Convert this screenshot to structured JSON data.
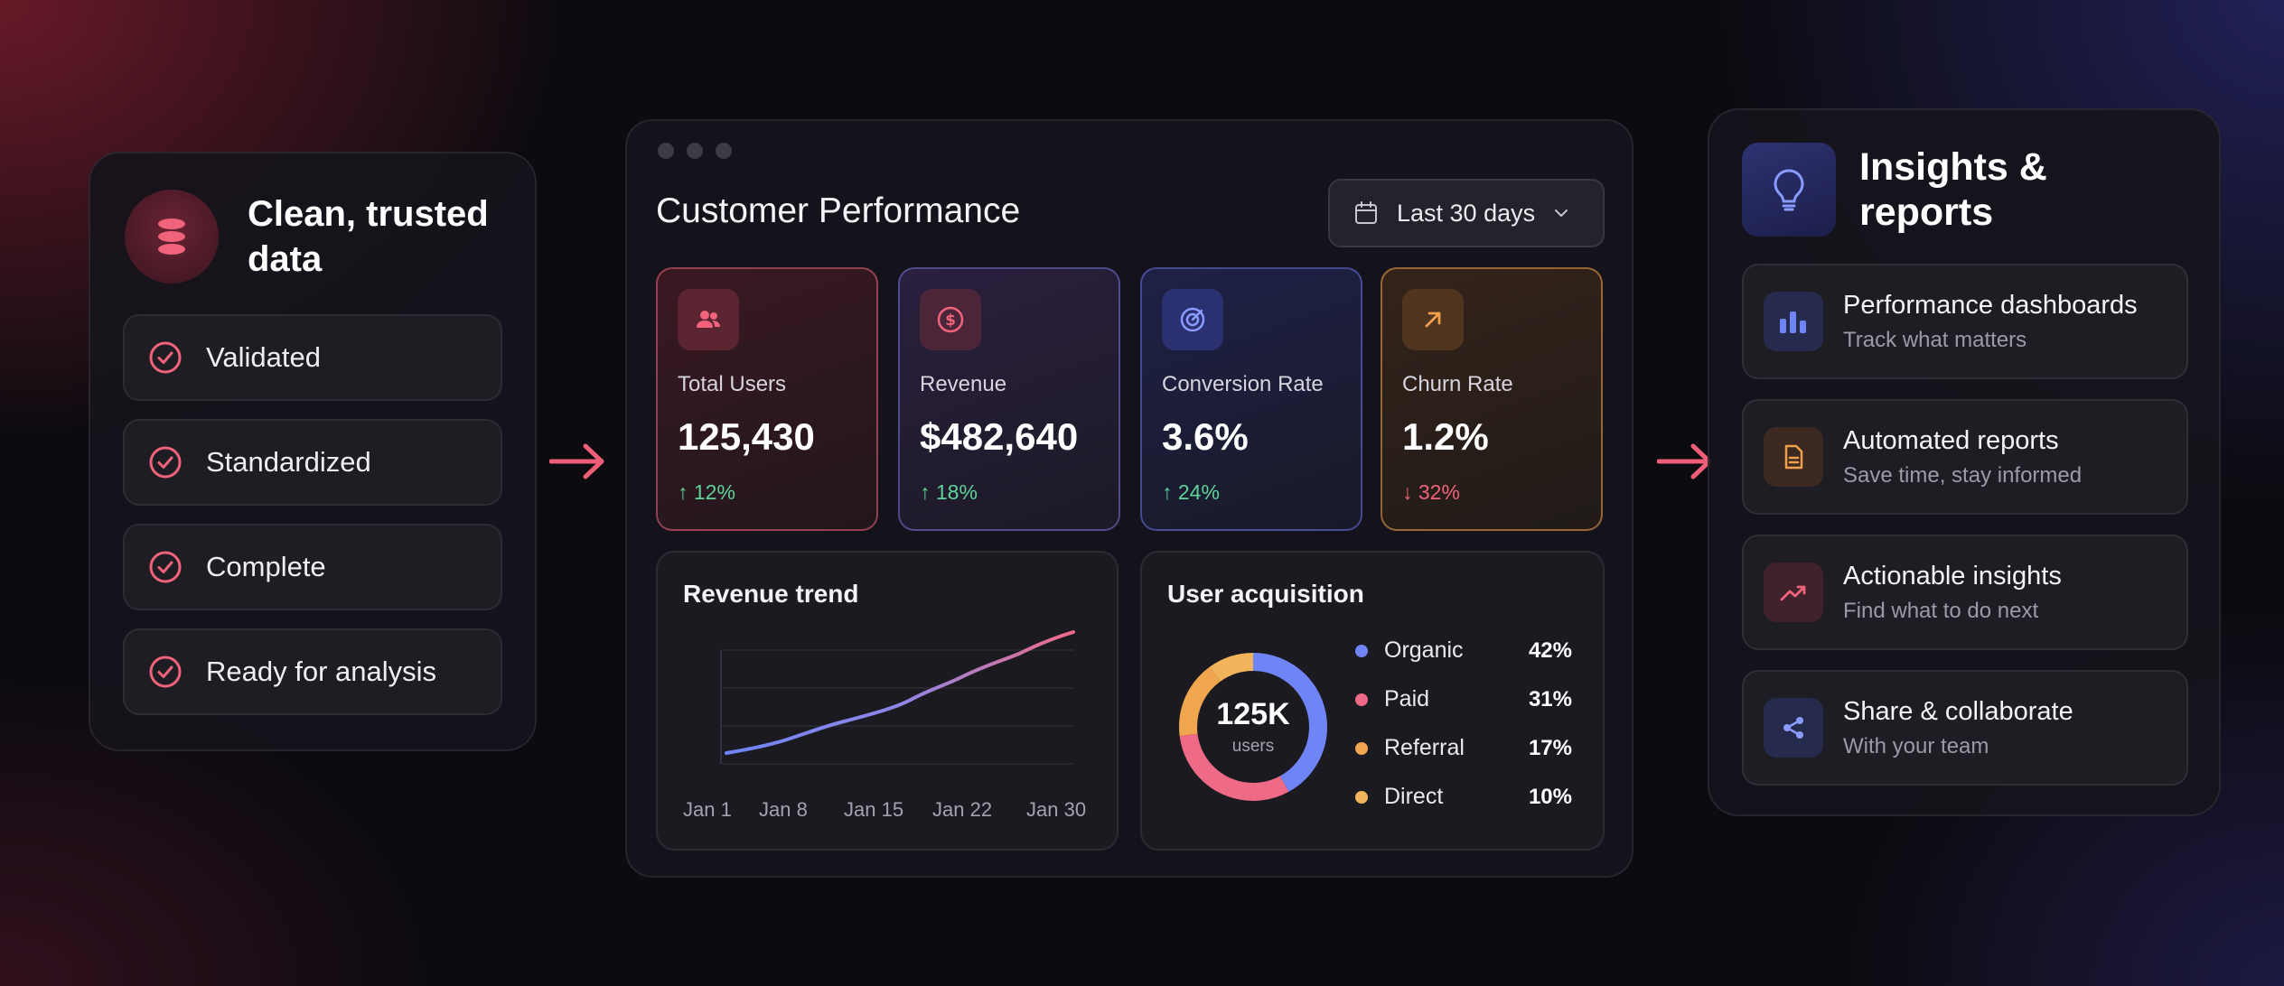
{
  "left_panel": {
    "title": "Clean, trusted data",
    "icon": "database-stack-icon",
    "items": [
      {
        "label": "Validated",
        "icon": "check-circle-icon"
      },
      {
        "label": "Standardized",
        "icon": "check-circle-icon"
      },
      {
        "label": "Complete",
        "icon": "check-circle-icon"
      },
      {
        "label": "Ready for analysis",
        "icon": "check-circle-icon"
      }
    ]
  },
  "dashboard": {
    "title": "Customer Performance",
    "date_filter": {
      "label": "Last 30 days",
      "icon": "calendar-icon"
    },
    "kpis": [
      {
        "label": "Total Users",
        "value": "125,430",
        "delta": "↑ 12%",
        "icon": "users-icon",
        "accent": "#e8637a"
      },
      {
        "label": "Revenue",
        "value": "$482,640",
        "delta": "↑ 18%",
        "icon": "dollar-icon",
        "accent": "#e8637a"
      },
      {
        "label": "Conversion Rate",
        "value": "3.6%",
        "delta": "↑ 24%",
        "icon": "target-icon",
        "accent": "#7b8cf7"
      },
      {
        "label": "Churn Rate",
        "value": "1.2%",
        "delta": "↓ 32%",
        "icon": "arrow-up-right-icon",
        "accent": "#f0a04b"
      }
    ],
    "revenue_trend": {
      "title": "Revenue trend",
      "x_labels": [
        "Jan 1",
        "Jan 8",
        "Jan 15",
        "Jan 22",
        "Jan 30"
      ]
    },
    "user_acquisition": {
      "title": "User acquisition",
      "center_value": "125K",
      "center_label": "users",
      "segments": [
        {
          "name": "Organic",
          "pct": "42%",
          "value": 42,
          "color": "#6f85f5"
        },
        {
          "name": "Paid",
          "pct": "31%",
          "value": 31,
          "color": "#ee6a86"
        },
        {
          "name": "Referral",
          "pct": "17%",
          "value": 17,
          "color": "#f0a54f"
        },
        {
          "name": "Direct",
          "pct": "10%",
          "value": 10,
          "color": "#f2b45a"
        }
      ]
    }
  },
  "right_panel": {
    "title": "Insights & reports",
    "icon": "lightbulb-icon",
    "features": [
      {
        "title": "Performance dashboards",
        "subtitle": "Track what matters",
        "icon": "bar-chart-icon"
      },
      {
        "title": "Automated reports",
        "subtitle": "Save time, stay informed",
        "icon": "document-icon"
      },
      {
        "title": "Actionable insights",
        "subtitle": "Find what to do next",
        "icon": "trend-up-icon"
      },
      {
        "title": "Share & collaborate",
        "subtitle": "With your team",
        "icon": "share-icon"
      }
    ]
  },
  "colors": {
    "accent_pink": "#e8637a",
    "positive": "#5fd39a",
    "negative": "#f0637a"
  }
}
